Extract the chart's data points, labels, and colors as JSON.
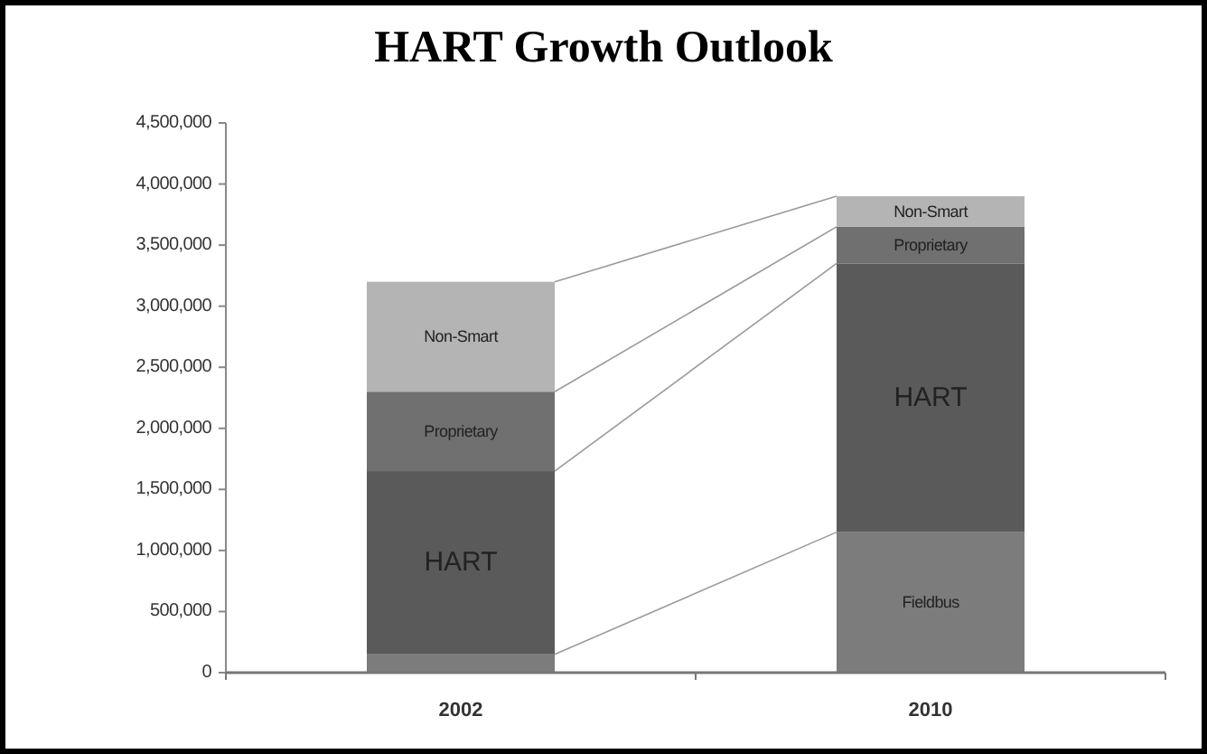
{
  "chart_data": {
    "type": "bar",
    "title": "HART Growth Outlook",
    "stacked": true,
    "categories": [
      "2002",
      "2010"
    ],
    "series": [
      {
        "name": "Fieldbus",
        "color": "#7c7c7c",
        "values": [
          150000,
          1150000
        ]
      },
      {
        "name": "HART",
        "color": "#5a5a5a",
        "values": [
          1500000,
          2200000
        ]
      },
      {
        "name": "Proprietary",
        "color": "#707070",
        "values": [
          650000,
          300000
        ]
      },
      {
        "name": "Non-Smart",
        "color": "#b4b4b4",
        "values": [
          900000,
          250000
        ]
      }
    ],
    "ylim": [
      0,
      4500000
    ],
    "yticks": [
      {
        "value": 0,
        "label": "0"
      },
      {
        "value": 500000,
        "label": "500,000"
      },
      {
        "value": 1000000,
        "label": "1,000,000"
      },
      {
        "value": 1500000,
        "label": "1,500,000"
      },
      {
        "value": 2000000,
        "label": "2,000,000"
      },
      {
        "value": 2500000,
        "label": "2,500,000"
      },
      {
        "value": 3000000,
        "label": "3,000,000"
      },
      {
        "value": 3500000,
        "label": "3,500,000"
      },
      {
        "value": 4000000,
        "label": "4,000,000"
      },
      {
        "value": 4500000,
        "label": "4,500,000"
      }
    ],
    "grid": false
  }
}
